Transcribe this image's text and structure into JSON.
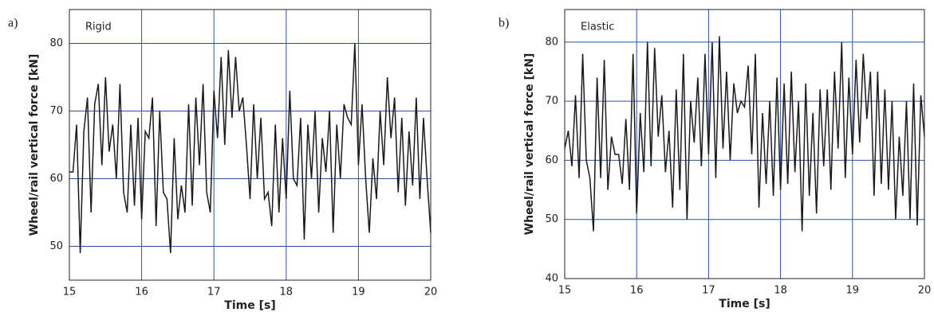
{
  "chart_data": [
    {
      "type": "line",
      "panel_label": "a)",
      "annotation": "Rigid",
      "xlabel": "Time [s]",
      "ylabel": "Wheel/rail vertical force [kN]",
      "xlim": [
        15,
        20
      ],
      "xticks": [
        15,
        16,
        17,
        18,
        19,
        20
      ],
      "ylim": [
        45,
        85
      ],
      "yticks": [
        50,
        60,
        70,
        80
      ],
      "grid": true,
      "grid_color": "#2a52a8",
      "x": [
        15,
        15.05,
        15.1,
        15.15,
        15.2,
        15.25,
        15.3,
        15.35,
        15.4,
        15.45,
        15.5,
        15.55,
        15.6,
        15.65,
        15.7,
        15.75,
        15.8,
        15.85,
        15.9,
        15.95,
        16,
        16.05,
        16.1,
        16.15,
        16.2,
        16.25,
        16.3,
        16.35,
        16.4,
        16.45,
        16.5,
        16.55,
        16.6,
        16.65,
        16.7,
        16.75,
        16.8,
        16.85,
        16.9,
        16.95,
        17,
        17.05,
        17.1,
        17.15,
        17.2,
        17.25,
        17.3,
        17.35,
        17.4,
        17.45,
        17.5,
        17.55,
        17.6,
        17.65,
        17.7,
        17.75,
        17.8,
        17.85,
        17.9,
        17.95,
        18,
        18.05,
        18.1,
        18.15,
        18.2,
        18.25,
        18.3,
        18.35,
        18.4,
        18.45,
        18.5,
        18.55,
        18.6,
        18.65,
        18.7,
        18.75,
        18.8,
        18.85,
        18.9,
        18.95,
        19,
        19.05,
        19.1,
        19.15,
        19.2,
        19.25,
        19.3,
        19.35,
        19.4,
        19.45,
        19.5,
        19.55,
        19.6,
        19.65,
        19.7,
        19.75,
        19.8,
        19.85,
        19.9,
        19.95,
        20
      ],
      "series": [
        {
          "color": "#1a1a1a",
          "values": [
            61,
            61,
            68,
            49,
            67,
            72,
            55,
            71,
            74,
            62,
            75,
            64,
            68,
            60,
            74,
            58,
            55,
            68,
            56,
            69,
            54,
            67,
            66,
            72,
            53,
            70,
            58,
            57,
            49,
            66,
            54,
            59,
            55,
            71,
            56,
            72,
            62,
            74,
            58,
            55,
            73,
            66,
            78,
            65,
            79,
            69,
            78,
            70,
            72,
            65,
            57,
            71,
            60,
            69,
            57,
            58,
            53,
            68,
            55,
            66,
            57,
            73,
            60,
            59,
            69,
            51,
            68,
            60,
            70,
            55,
            66,
            61,
            70,
            52,
            68,
            60,
            71,
            69,
            68,
            80,
            62,
            71,
            60,
            52,
            63,
            57,
            70,
            62,
            75,
            66,
            72,
            58,
            69,
            56,
            67,
            59,
            72,
            57,
            69,
            60,
            52
          ]
        }
      ]
    },
    {
      "type": "line",
      "panel_label": "b)",
      "annotation": "Elastic",
      "xlabel": "Time [s]",
      "ylabel": "Wheel/rail vertical force [kN]",
      "xlim": [
        15,
        20
      ],
      "xticks": [
        15,
        16,
        17,
        18,
        19,
        20
      ],
      "ylim": [
        40,
        85.5
      ],
      "yticks": [
        40,
        50,
        60,
        70,
        80
      ],
      "grid": true,
      "grid_color": "#2a52a8",
      "x": [
        15,
        15.05,
        15.1,
        15.15,
        15.2,
        15.25,
        15.3,
        15.35,
        15.4,
        15.45,
        15.5,
        15.55,
        15.6,
        15.65,
        15.7,
        15.75,
        15.8,
        15.85,
        15.9,
        15.95,
        16,
        16.05,
        16.1,
        16.15,
        16.2,
        16.25,
        16.3,
        16.35,
        16.4,
        16.45,
        16.5,
        16.55,
        16.6,
        16.65,
        16.7,
        16.75,
        16.8,
        16.85,
        16.9,
        16.95,
        17,
        17.05,
        17.1,
        17.15,
        17.2,
        17.25,
        17.3,
        17.35,
        17.4,
        17.45,
        17.5,
        17.55,
        17.6,
        17.65,
        17.7,
        17.75,
        17.8,
        17.85,
        17.9,
        17.95,
        18,
        18.05,
        18.1,
        18.15,
        18.2,
        18.25,
        18.3,
        18.35,
        18.4,
        18.45,
        18.5,
        18.55,
        18.6,
        18.65,
        18.7,
        18.75,
        18.8,
        18.85,
        18.9,
        18.95,
        19,
        19.05,
        19.1,
        19.15,
        19.2,
        19.25,
        19.3,
        19.35,
        19.4,
        19.45,
        19.5,
        19.55,
        19.6,
        19.65,
        19.7,
        19.75,
        19.8,
        19.85,
        19.9,
        19.95,
        20
      ],
      "series": [
        {
          "color": "#1a1a1a",
          "values": [
            62,
            65,
            59,
            71,
            57,
            78,
            60,
            57,
            48,
            74,
            57,
            77,
            55,
            64,
            61,
            61,
            56,
            67,
            55,
            78,
            51,
            68,
            58,
            80,
            59,
            79,
            64,
            71,
            58,
            65,
            52,
            72,
            55,
            78,
            50,
            70,
            63,
            74,
            59,
            78,
            61,
            80,
            57,
            81,
            62,
            75,
            60,
            73,
            68,
            70,
            69,
            76,
            61,
            78,
            52,
            68,
            56,
            70,
            54,
            74,
            55,
            73,
            56,
            75,
            58,
            70,
            48,
            73,
            54,
            68,
            51,
            72,
            59,
            72,
            55,
            75,
            62,
            80,
            57,
            74,
            61,
            77,
            63,
            78,
            67,
            75,
            54,
            75,
            56,
            72,
            55,
            70,
            50,
            64,
            54,
            70,
            50,
            73,
            49,
            71,
            64
          ]
        }
      ]
    }
  ]
}
